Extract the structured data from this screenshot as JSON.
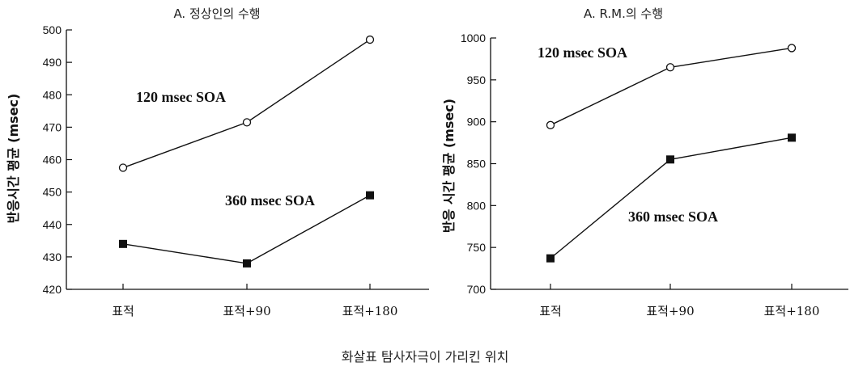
{
  "xlabel": "화살표 탐사자극이 가리킨 위치",
  "chart_data": [
    {
      "type": "line",
      "title": "A. 정상인의 수행",
      "ylabel": "반응시간 평균 (msec)",
      "xlabel": "",
      "categories": [
        "표적",
        "표적+90",
        "표적+180"
      ],
      "ylim": [
        420,
        500
      ],
      "yticks": [
        420,
        430,
        440,
        450,
        460,
        470,
        480,
        490,
        500
      ],
      "series": [
        {
          "name": "120 msec SOA",
          "marker": "open-circle",
          "values": [
            457.5,
            471.5,
            497
          ]
        },
        {
          "name": "360 msec SOA",
          "marker": "filled-square",
          "values": [
            434,
            428,
            449
          ]
        }
      ]
    },
    {
      "type": "line",
      "title": "A. R.M.의 수행",
      "ylabel": "반응 시간 평균 (msec)",
      "xlabel": "",
      "categories": [
        "표적",
        "표적+90",
        "표적+180"
      ],
      "ylim": [
        700,
        1000
      ],
      "yticks": [
        700,
        750,
        800,
        850,
        900,
        950,
        1000
      ],
      "series": [
        {
          "name": "120 msec SOA",
          "marker": "open-circle",
          "values": [
            896,
            965,
            988
          ]
        },
        {
          "name": "360 msec SOA",
          "marker": "filled-square",
          "values": [
            737,
            855,
            881
          ]
        }
      ]
    }
  ]
}
